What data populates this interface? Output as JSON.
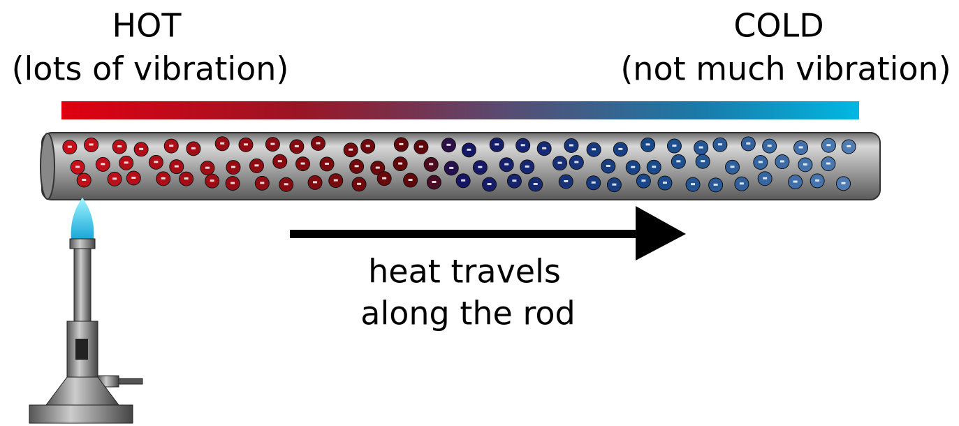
{
  "hot": {
    "title": "HOT",
    "subtitle": "(lots of vibration)"
  },
  "cold": {
    "title": "COLD",
    "subtitle": "(not much vibration)"
  },
  "caption": [
    "heat travels",
    "along the rod"
  ]
}
